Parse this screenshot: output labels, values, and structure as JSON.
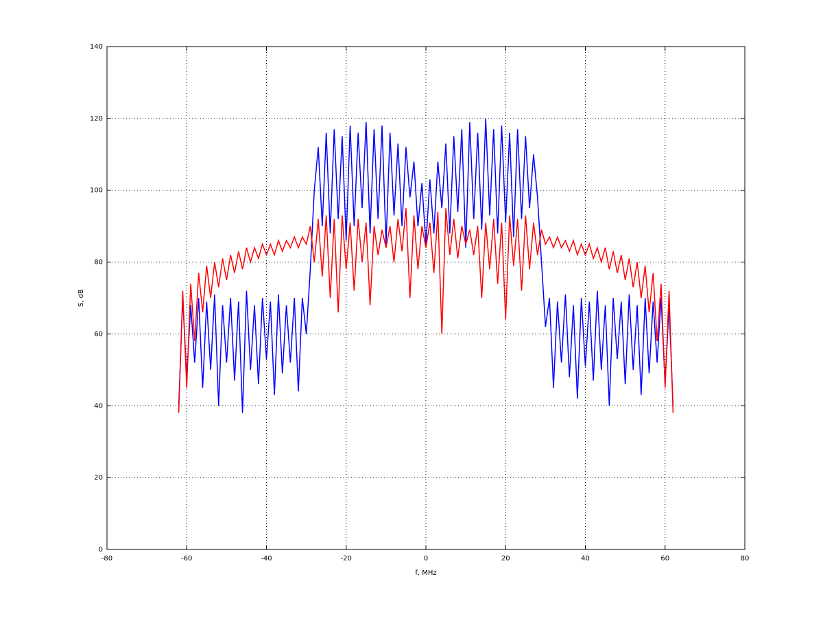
{
  "chart_data": {
    "type": "line",
    "xlabel": "f, MHz",
    "ylabel": "S, dB",
    "x": [
      -62,
      -61,
      -60,
      -59,
      -58,
      -57,
      -56,
      -55,
      -54,
      -53,
      -52,
      -51,
      -50,
      -49,
      -48,
      -47,
      -46,
      -45,
      -44,
      -43,
      -42,
      -41,
      -40,
      -39,
      -38,
      -37,
      -36,
      -35,
      -34,
      -33,
      -32,
      -31,
      -30,
      -29,
      -28,
      -27,
      -26,
      -25,
      -24,
      -23,
      -22,
      -21,
      -20,
      -19,
      -18,
      -17,
      -16,
      -15,
      -14,
      -13,
      -12,
      -11,
      -10,
      -9,
      -8,
      -7,
      -6,
      -5,
      -4,
      -3,
      -2,
      -1,
      0,
      1,
      2,
      3,
      4,
      5,
      6,
      7,
      8,
      9,
      10,
      11,
      12,
      13,
      14,
      15,
      16,
      17,
      18,
      19,
      20,
      21,
      22,
      23,
      24,
      25,
      26,
      27,
      28,
      29,
      30,
      31,
      32,
      33,
      34,
      35,
      36,
      37,
      38,
      39,
      40,
      41,
      42,
      43,
      44,
      45,
      46,
      47,
      48,
      49,
      50,
      51,
      52,
      53,
      54,
      55,
      56,
      57,
      58,
      59,
      60,
      61,
      62
    ],
    "series": [
      {
        "color": "#0000ff",
        "values": [
          40,
          70,
          48,
          68,
          52,
          70,
          45,
          69,
          50,
          71,
          40,
          68,
          52,
          70,
          47,
          69,
          38,
          72,
          50,
          68,
          46,
          70,
          53,
          69,
          43,
          71,
          49,
          68,
          52,
          70,
          44,
          70,
          60,
          78,
          100,
          112,
          90,
          116,
          88,
          117,
          92,
          115,
          86,
          118,
          90,
          116,
          95,
          119,
          88,
          117,
          92,
          118,
          85,
          116,
          93,
          113,
          90,
          112,
          98,
          108,
          90,
          102,
          85,
          103,
          88,
          108,
          95,
          113,
          88,
          115,
          94,
          117,
          84,
          119,
          92,
          116,
          89,
          120,
          93,
          117,
          88,
          118,
          91,
          116,
          87,
          117,
          92,
          115,
          95,
          110,
          98,
          80,
          62,
          70,
          45,
          69,
          52,
          71,
          48,
          68,
          42,
          70,
          51,
          69,
          47,
          72,
          50,
          68,
          40,
          70,
          53,
          69,
          46,
          71,
          50,
          68,
          43,
          70,
          49,
          69,
          52,
          70,
          46,
          68,
          40
        ]
      },
      {
        "color": "#ff0000",
        "values": [
          38,
          72,
          45,
          74,
          58,
          77,
          66,
          79,
          70,
          80,
          73,
          81,
          75,
          82,
          77,
          83,
          78,
          84,
          80,
          84,
          81,
          85,
          82,
          85,
          82,
          86,
          83,
          86,
          84,
          87,
          84,
          87,
          85,
          90,
          80,
          92,
          76,
          93,
          70,
          92,
          66,
          93,
          78,
          91,
          72,
          92,
          80,
          91,
          68,
          90,
          82,
          89,
          84,
          90,
          80,
          92,
          83,
          95,
          70,
          93,
          78,
          90,
          84,
          91,
          77,
          94,
          60,
          95,
          82,
          92,
          81,
          90,
          85,
          89,
          82,
          90,
          70,
          91,
          78,
          92,
          74,
          91,
          64,
          93,
          79,
          92,
          72,
          93,
          78,
          91,
          82,
          89,
          85,
          87,
          84,
          87,
          84,
          86,
          83,
          86,
          82,
          85,
          82,
          85,
          81,
          84,
          80,
          84,
          78,
          83,
          77,
          82,
          75,
          81,
          73,
          80,
          70,
          79,
          66,
          77,
          58,
          74,
          45,
          72,
          38
        ]
      }
    ],
    "xlim": [
      -80,
      80
    ],
    "xticks": [
      -80,
      -60,
      -40,
      -20,
      0,
      20,
      40,
      60,
      80
    ],
    "ylim": [
      0,
      140
    ],
    "yticks": [
      0,
      20,
      40,
      60,
      80,
      100,
      120,
      140
    ],
    "grid": true
  }
}
